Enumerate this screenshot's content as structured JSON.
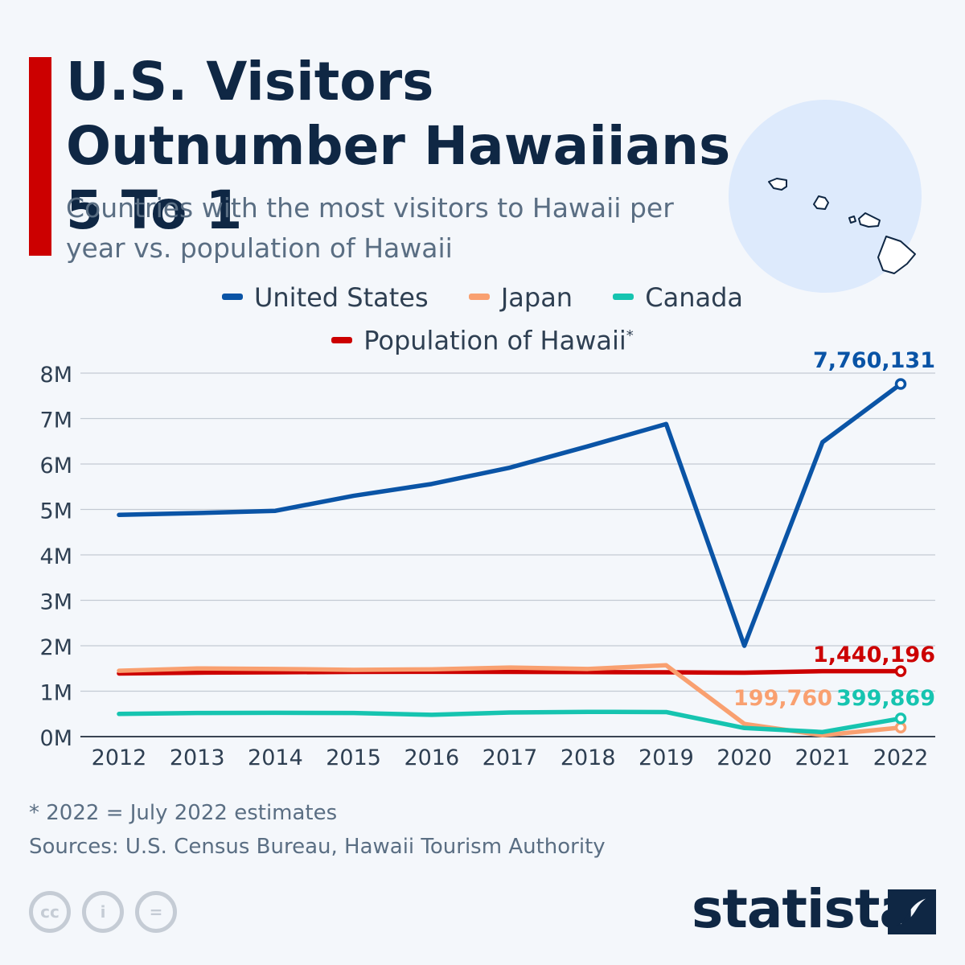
{
  "header": {
    "title": "U.S. Visitors Outnumber Hawaiians 5 To 1",
    "subtitle": "Countries with the most visitors to Hawaii per year vs. population of Hawaii"
  },
  "legend": {
    "us": "United States",
    "japan": "Japan",
    "canada": "Canada",
    "population": "Population of Hawaii",
    "population_mark": "*"
  },
  "colors": {
    "us": "#0a54a6",
    "japan": "#f9a070",
    "canada": "#16c4b0",
    "population": "#cc0000",
    "accent": "#cc0000"
  },
  "chart_data": {
    "type": "line",
    "title": "Countries with the most visitors to Hawaii per year vs. population of Hawaii",
    "xlabel": "",
    "ylabel": "",
    "ylim": [
      0,
      8000000
    ],
    "yticks": [
      {
        "value": 0,
        "label": "0M"
      },
      {
        "value": 1000000,
        "label": "1M"
      },
      {
        "value": 2000000,
        "label": "2M"
      },
      {
        "value": 3000000,
        "label": "3M"
      },
      {
        "value": 4000000,
        "label": "4M"
      },
      {
        "value": 5000000,
        "label": "5M"
      },
      {
        "value": 6000000,
        "label": "6M"
      },
      {
        "value": 7000000,
        "label": "7M"
      },
      {
        "value": 8000000,
        "label": "8M"
      }
    ],
    "categories": [
      "2012",
      "2013",
      "2014",
      "2015",
      "2016",
      "2017",
      "2018",
      "2019",
      "2020",
      "2021",
      "2022"
    ],
    "series": [
      {
        "key": "population",
        "name": "Population of Hawaii",
        "color": "#cc0000",
        "values": [
          1390000,
          1408000,
          1416000,
          1424000,
          1428000,
          1424000,
          1420000,
          1416000,
          1406000,
          1440000,
          1440196
        ],
        "end_label": "1,440,196"
      },
      {
        "key": "japan",
        "name": "Japan",
        "color": "#f9a070",
        "values": [
          1450000,
          1500000,
          1490000,
          1470000,
          1480000,
          1520000,
          1490000,
          1570000,
          280000,
          30000,
          199760
        ],
        "end_label": "199,760"
      },
      {
        "key": "canada",
        "name": "Canada",
        "color": "#16c4b0",
        "values": [
          500000,
          520000,
          525000,
          520000,
          480000,
          530000,
          545000,
          540000,
          190000,
          100000,
          399869
        ],
        "end_label": "399,869"
      },
      {
        "key": "us",
        "name": "United States",
        "color": "#0a54a6",
        "values": [
          4880000,
          4920000,
          4970000,
          5300000,
          5560000,
          5920000,
          6390000,
          6880000,
          2000000,
          6480000,
          7760131
        ],
        "end_label": "7,760,131"
      }
    ]
  },
  "footer": {
    "note": "* 2022 = July 2022 estimates",
    "sources": "Sources: U.S. Census Bureau, Hawaii Tourism Authority",
    "brand": "statista"
  }
}
